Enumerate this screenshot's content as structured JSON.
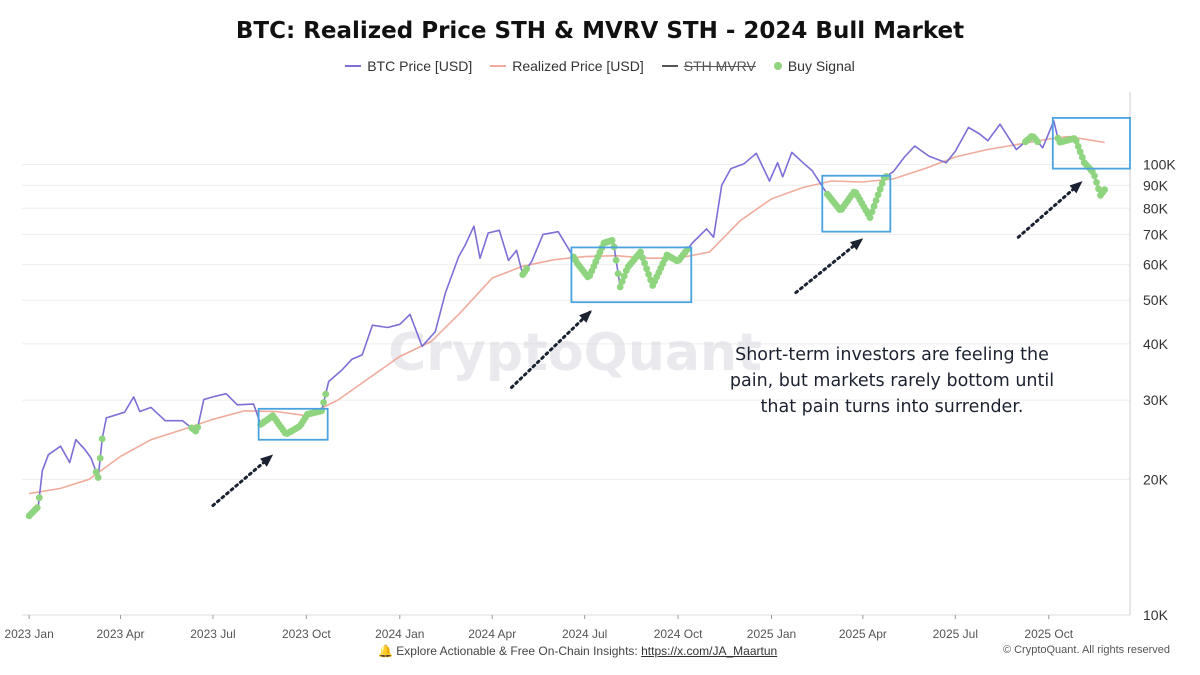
{
  "chart_data": {
    "type": "line",
    "title": "BTC: Realized Price STH & MVRV STH - 2024 Bull Market",
    "legend": [
      {
        "name": "BTC Price [USD]",
        "color": "#7b6fd6",
        "kind": "line"
      },
      {
        "name": "Realized Price [USD]",
        "color": "#f0ab9c",
        "kind": "line"
      },
      {
        "name": "STH MVRV",
        "color": "#555555",
        "kind": "line",
        "hidden": true
      },
      {
        "name": "Buy Signal",
        "color": "#8fd47e",
        "kind": "dot"
      }
    ],
    "legend_position": "top-center",
    "x_ticks": [
      "2023 Jan",
      "2023 Apr",
      "2023 Jul",
      "2023 Oct",
      "2024 Jan",
      "2024 Apr",
      "2024 Jul",
      "2024 Oct",
      "2025 Jan",
      "2025 Apr",
      "2025 Jul",
      "2025 Oct"
    ],
    "y_scale": "log",
    "y_ticks": [
      "10K",
      "20K",
      "30K",
      "40K",
      "50K",
      "60K",
      "70K",
      "80K",
      "90K",
      "100K"
    ],
    "y_tick_values": [
      10000,
      20000,
      30000,
      40000,
      50000,
      60000,
      70000,
      80000,
      90000,
      100000
    ],
    "y_range": [
      10000,
      145000
    ],
    "x_range": [
      "2022-12-25",
      "2025-12-20"
    ],
    "series": [
      {
        "name": "BTC Price [USD]",
        "points": [
          [
            "2023-01-01",
            16600
          ],
          [
            "2023-01-10",
            17400
          ],
          [
            "2023-01-14",
            20900
          ],
          [
            "2023-01-20",
            22700
          ],
          [
            "2023-02-01",
            23700
          ],
          [
            "2023-02-10",
            21800
          ],
          [
            "2023-02-16",
            24500
          ],
          [
            "2023-02-25",
            23300
          ],
          [
            "2023-03-03",
            22300
          ],
          [
            "2023-03-10",
            20200
          ],
          [
            "2023-03-14",
            24600
          ],
          [
            "2023-03-18",
            27400
          ],
          [
            "2023-03-25",
            27700
          ],
          [
            "2023-04-05",
            28200
          ],
          [
            "2023-04-14",
            30500
          ],
          [
            "2023-04-20",
            28300
          ],
          [
            "2023-05-01",
            28900
          ],
          [
            "2023-05-15",
            27000
          ],
          [
            "2023-06-01",
            27000
          ],
          [
            "2023-06-15",
            25500
          ],
          [
            "2023-06-22",
            30100
          ],
          [
            "2023-07-01",
            30500
          ],
          [
            "2023-07-14",
            31000
          ],
          [
            "2023-07-25",
            29300
          ],
          [
            "2023-08-10",
            29400
          ],
          [
            "2023-08-17",
            26500
          ],
          [
            "2023-08-29",
            27700
          ],
          [
            "2023-09-11",
            25200
          ],
          [
            "2023-09-25",
            26300
          ],
          [
            "2023-10-02",
            27900
          ],
          [
            "2023-10-16",
            28400
          ],
          [
            "2023-10-23",
            33000
          ],
          [
            "2023-11-05",
            35000
          ],
          [
            "2023-11-15",
            37000
          ],
          [
            "2023-11-25",
            37800
          ],
          [
            "2023-12-05",
            44000
          ],
          [
            "2023-12-20",
            43500
          ],
          [
            "2024-01-01",
            44200
          ],
          [
            "2024-01-11",
            46500
          ],
          [
            "2024-01-23",
            39500
          ],
          [
            "2024-02-05",
            42600
          ],
          [
            "2024-02-15",
            52000
          ],
          [
            "2024-02-28",
            62500
          ],
          [
            "2024-03-05",
            66000
          ],
          [
            "2024-03-14",
            73000
          ],
          [
            "2024-03-20",
            62000
          ],
          [
            "2024-03-28",
            70500
          ],
          [
            "2024-04-08",
            71500
          ],
          [
            "2024-04-17",
            61300
          ],
          [
            "2024-04-25",
            64500
          ],
          [
            "2024-05-01",
            57000
          ],
          [
            "2024-05-10",
            61000
          ],
          [
            "2024-05-21",
            70000
          ],
          [
            "2024-06-05",
            71000
          ],
          [
            "2024-06-24",
            60300
          ],
          [
            "2024-07-05",
            56000
          ],
          [
            "2024-07-20",
            67000
          ],
          [
            "2024-07-29",
            68000
          ],
          [
            "2024-08-05",
            53500
          ],
          [
            "2024-08-12",
            59000
          ],
          [
            "2024-08-25",
            64000
          ],
          [
            "2024-09-06",
            53900
          ],
          [
            "2024-09-20",
            63000
          ],
          [
            "2024-10-01",
            61000
          ],
          [
            "2024-10-15",
            67000
          ],
          [
            "2024-10-29",
            72000
          ],
          [
            "2024-11-05",
            69000
          ],
          [
            "2024-11-13",
            90000
          ],
          [
            "2024-11-22",
            98000
          ],
          [
            "2024-12-05",
            100500
          ],
          [
            "2024-12-17",
            106000
          ],
          [
            "2024-12-30",
            92000
          ],
          [
            "2025-01-07",
            101000
          ],
          [
            "2025-01-12",
            94000
          ],
          [
            "2025-01-21",
            106500
          ],
          [
            "2025-02-01",
            101000
          ],
          [
            "2025-02-10",
            97000
          ],
          [
            "2025-02-25",
            86000
          ],
          [
            "2025-03-10",
            79000
          ],
          [
            "2025-03-24",
            87500
          ],
          [
            "2025-04-08",
            76300
          ],
          [
            "2025-04-22",
            93500
          ],
          [
            "2025-05-01",
            96500
          ],
          [
            "2025-05-12",
            104000
          ],
          [
            "2025-05-22",
            110000
          ],
          [
            "2025-06-05",
            104500
          ],
          [
            "2025-06-22",
            101000
          ],
          [
            "2025-07-01",
            107000
          ],
          [
            "2025-07-14",
            121000
          ],
          [
            "2025-07-25",
            117000
          ],
          [
            "2025-08-02",
            113000
          ],
          [
            "2025-08-14",
            123000
          ],
          [
            "2025-08-30",
            108000
          ],
          [
            "2025-09-15",
            116000
          ],
          [
            "2025-09-25",
            109000
          ],
          [
            "2025-10-06",
            125000
          ],
          [
            "2025-10-11",
            112000
          ],
          [
            "2025-10-27",
            114500
          ],
          [
            "2025-11-05",
            101000
          ],
          [
            "2025-11-14",
            96000
          ],
          [
            "2025-11-21",
            85500
          ],
          [
            "2025-11-25",
            88000
          ]
        ]
      },
      {
        "name": "Realized Price [USD]",
        "points": [
          [
            "2023-01-01",
            18600
          ],
          [
            "2023-02-01",
            19100
          ],
          [
            "2023-03-01",
            20000
          ],
          [
            "2023-04-01",
            22500
          ],
          [
            "2023-05-01",
            24500
          ],
          [
            "2023-06-01",
            25800
          ],
          [
            "2023-07-01",
            27200
          ],
          [
            "2023-08-01",
            28400
          ],
          [
            "2023-09-01",
            28300
          ],
          [
            "2023-10-01",
            27700
          ],
          [
            "2023-11-01",
            30000
          ],
          [
            "2023-12-01",
            33500
          ],
          [
            "2024-01-01",
            37500
          ],
          [
            "2024-02-01",
            40500
          ],
          [
            "2024-03-01",
            47000
          ],
          [
            "2024-04-01",
            56000
          ],
          [
            "2024-05-01",
            59500
          ],
          [
            "2024-06-01",
            61500
          ],
          [
            "2024-07-01",
            62500
          ],
          [
            "2024-08-01",
            62800
          ],
          [
            "2024-09-01",
            62000
          ],
          [
            "2024-10-01",
            62000
          ],
          [
            "2024-11-01",
            64000
          ],
          [
            "2024-12-01",
            75000
          ],
          [
            "2025-01-01",
            84000
          ],
          [
            "2025-02-01",
            89000
          ],
          [
            "2025-03-01",
            92000
          ],
          [
            "2025-04-01",
            91500
          ],
          [
            "2025-05-01",
            93000
          ],
          [
            "2025-06-01",
            98000
          ],
          [
            "2025-07-01",
            104000
          ],
          [
            "2025-08-01",
            108000
          ],
          [
            "2025-09-01",
            111000
          ],
          [
            "2025-10-01",
            114000
          ],
          [
            "2025-10-20",
            115500
          ],
          [
            "2025-11-10",
            113500
          ],
          [
            "2025-11-25",
            112000
          ]
        ]
      }
    ],
    "buy_signal_ranges": [
      [
        "2023-01-01",
        "2023-01-12"
      ],
      [
        "2023-03-08",
        "2023-03-14"
      ],
      [
        "2023-06-10",
        "2023-06-16"
      ],
      [
        "2023-08-17",
        "2023-10-20"
      ],
      [
        "2024-05-01",
        "2024-05-05"
      ],
      [
        "2024-06-20",
        "2024-10-10"
      ],
      [
        "2025-02-25",
        "2025-04-25"
      ],
      [
        "2025-09-08",
        "2025-09-20"
      ],
      [
        "2025-10-10",
        "2025-11-25"
      ]
    ],
    "highlight_boxes": [
      {
        "x": [
          "2023-08-15",
          "2023-10-22"
        ],
        "y": [
          24500,
          28700
        ]
      },
      {
        "x": [
          "2024-06-18",
          "2024-10-14"
        ],
        "y": [
          49500,
          65500
        ]
      },
      {
        "x": [
          "2025-02-20",
          "2025-04-28"
        ],
        "y": [
          71000,
          94500
        ]
      },
      {
        "x": [
          "2025-10-05",
          "2025-12-20"
        ],
        "y": [
          98000,
          127000
        ]
      }
    ],
    "arrows": [
      {
        "from": [
          "2023-07-01",
          17500
        ],
        "to": [
          "2023-08-27",
          22500
        ]
      },
      {
        "from": [
          "2024-04-20",
          32000
        ],
        "to": [
          "2024-07-06",
          47000
        ]
      },
      {
        "from": [
          "2025-01-25",
          52000
        ],
        "to": [
          "2025-03-30",
          68000
        ]
      },
      {
        "from": [
          "2025-09-01",
          69000
        ],
        "to": [
          "2025-11-01",
          91000
        ]
      }
    ],
    "annotation": "Short-term investors are feeling the pain, but markets rarely bottom until that pain turns into surrender.",
    "watermark": "CryptoQuant"
  },
  "footer": {
    "insights_text": "Explore Actionable & Free On-Chain Insights:",
    "insights_link": "https://x.com/JA_Maartun",
    "copyright": "© CryptoQuant. All rights reserved"
  }
}
